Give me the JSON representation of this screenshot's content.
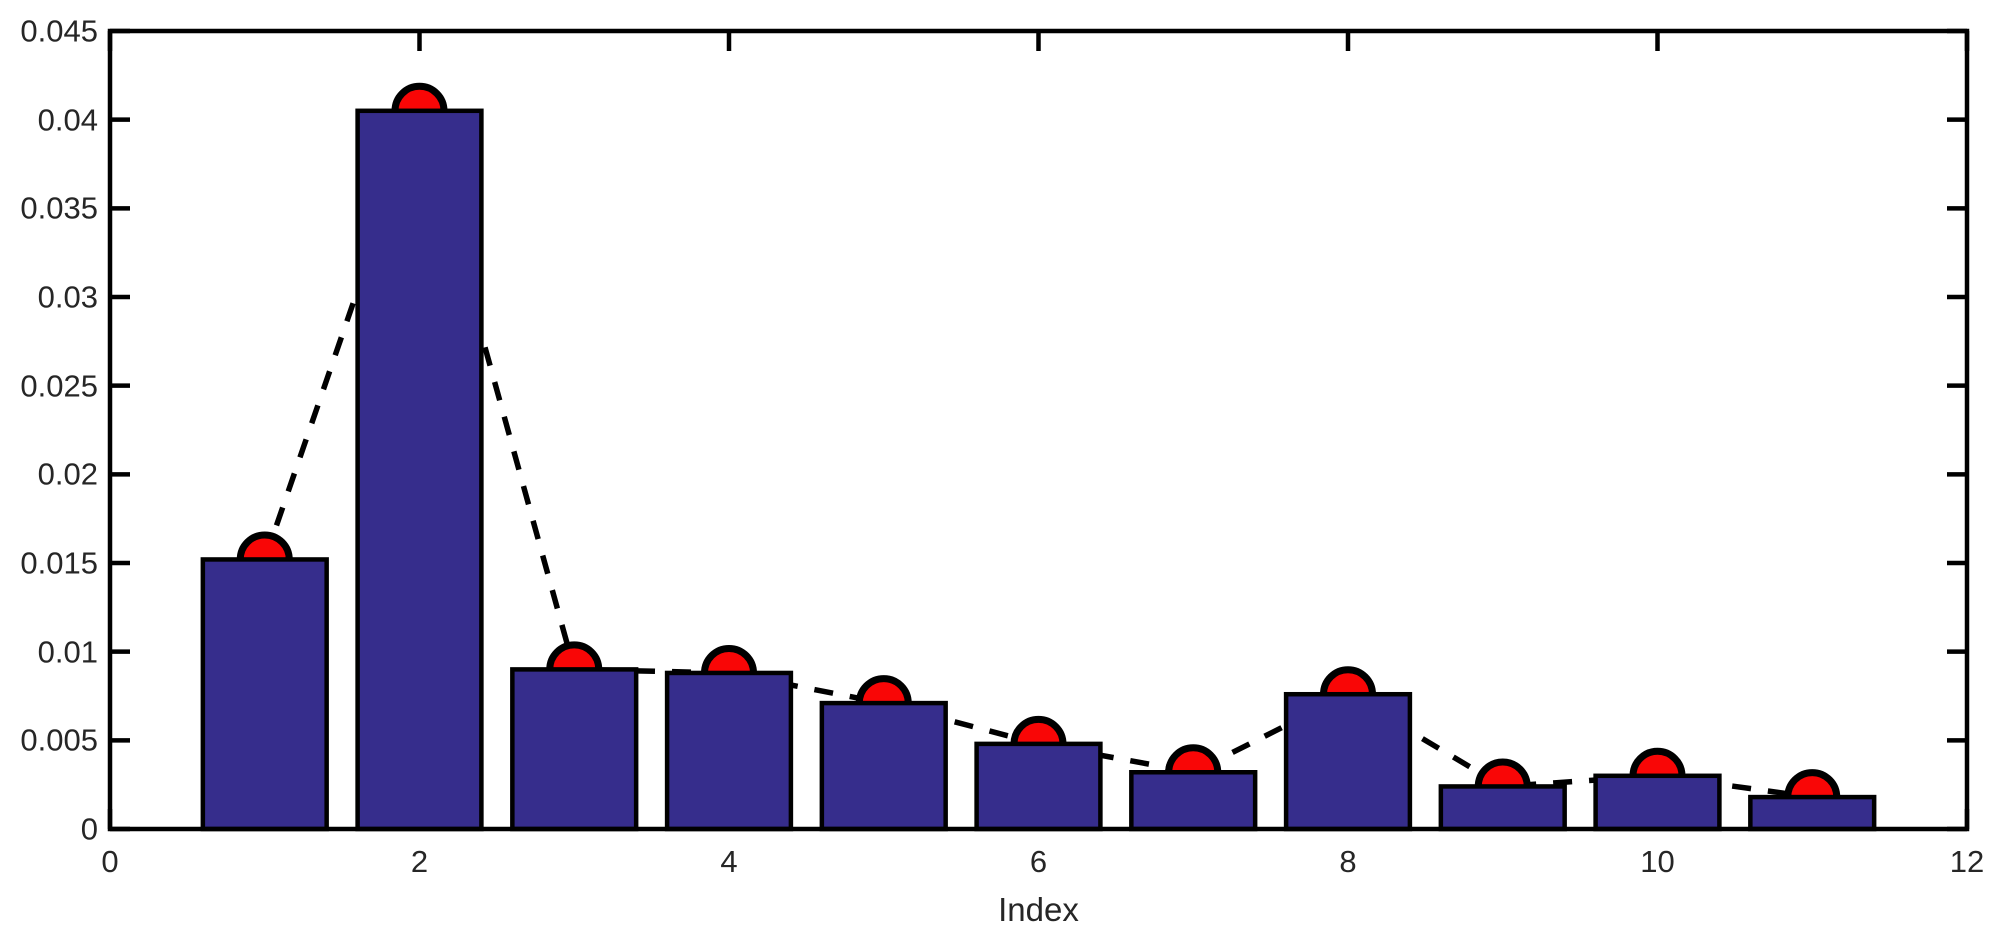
{
  "chart_data": {
    "type": "bar",
    "overlay": "dashed line with circular markers through bar tops",
    "x": [
      1,
      2,
      3,
      4,
      5,
      6,
      7,
      8,
      9,
      10,
      11
    ],
    "series": [
      {
        "name": "bars",
        "values": [
          0.0152,
          0.0405,
          0.009,
          0.0088,
          0.0071,
          0.0048,
          0.0032,
          0.0076,
          0.0024,
          0.003,
          0.0018
        ]
      },
      {
        "name": "line-markers",
        "values": [
          0.0152,
          0.0405,
          0.009,
          0.0088,
          0.0071,
          0.0048,
          0.0032,
          0.0076,
          0.0024,
          0.003,
          0.0018
        ]
      }
    ],
    "title": "",
    "xlabel": "Index",
    "ylabel": "",
    "xlim": [
      0,
      12
    ],
    "ylim": [
      0,
      0.045
    ],
    "xticks": [
      0,
      2,
      4,
      6,
      8,
      10,
      12
    ],
    "xticklabels": [
      "0",
      "2",
      "4",
      "6",
      "8",
      "10",
      "12"
    ],
    "yticks": [
      0,
      0.005,
      0.01,
      0.015,
      0.02,
      0.025,
      0.03,
      0.035,
      0.04,
      0.045
    ],
    "yticklabels": [
      "0",
      "0.005",
      "0.01",
      "0.015",
      "0.02",
      "0.025",
      "0.03",
      "0.035",
      "0.04",
      "0.045"
    ],
    "grid": false,
    "legend": "none",
    "box": true,
    "tick_direction": "in",
    "colors": {
      "bar_fill": "#362D8C",
      "bar_edge": "#000000",
      "line": "#000000",
      "marker_fill": "#F90606",
      "marker_edge": "#000000",
      "axis": "#000000",
      "text": "#262626",
      "background": "#FFFFFF"
    }
  }
}
